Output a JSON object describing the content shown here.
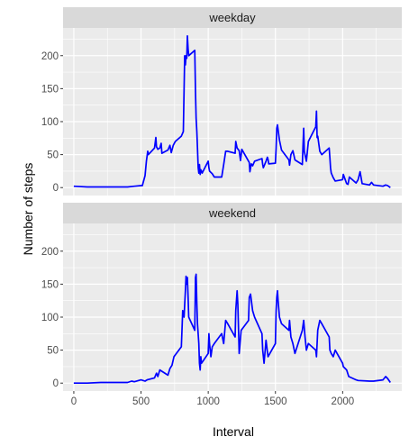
{
  "chart_data": {
    "type": "line",
    "xlabel": "Interval",
    "ylabel": "Number of steps",
    "xlim": [
      -80,
      2440
    ],
    "ylim": [
      -12,
      242
    ],
    "xticks": [
      0,
      500,
      1000,
      1500,
      2000
    ],
    "yticks": [
      0,
      50,
      100,
      150,
      200
    ],
    "grid": true,
    "line_color": "#0000ff",
    "panel_background": "#ebebeb",
    "strip_background": "#d9d9d9",
    "panels": [
      {
        "label": "weekday",
        "points": [
          [
            0,
            2
          ],
          [
            100,
            1
          ],
          [
            200,
            1
          ],
          [
            300,
            1
          ],
          [
            400,
            1
          ],
          [
            450,
            2
          ],
          [
            500,
            3
          ],
          [
            510,
            3
          ],
          [
            530,
            18
          ],
          [
            540,
            40
          ],
          [
            550,
            55
          ],
          [
            555,
            50
          ],
          [
            600,
            60
          ],
          [
            610,
            76
          ],
          [
            615,
            62
          ],
          [
            625,
            58
          ],
          [
            640,
            60
          ],
          [
            650,
            67
          ],
          [
            655,
            52
          ],
          [
            700,
            57
          ],
          [
            715,
            64
          ],
          [
            725,
            53
          ],
          [
            740,
            64
          ],
          [
            755,
            70
          ],
          [
            800,
            78
          ],
          [
            815,
            85
          ],
          [
            825,
            200
          ],
          [
            830,
            186
          ],
          [
            835,
            200
          ],
          [
            840,
            196
          ],
          [
            845,
            230
          ],
          [
            850,
            210
          ],
          [
            855,
            200
          ],
          [
            900,
            208
          ],
          [
            905,
            145
          ],
          [
            910,
            105
          ],
          [
            915,
            85
          ],
          [
            920,
            60
          ],
          [
            925,
            30
          ],
          [
            930,
            22
          ],
          [
            935,
            35
          ],
          [
            940,
            20
          ],
          [
            945,
            27
          ],
          [
            950,
            25
          ],
          [
            955,
            22
          ],
          [
            1000,
            40
          ],
          [
            1005,
            30
          ],
          [
            1010,
            25
          ],
          [
            1030,
            21
          ],
          [
            1045,
            16
          ],
          [
            1100,
            16
          ],
          [
            1115,
            35
          ],
          [
            1130,
            55
          ],
          [
            1145,
            55
          ],
          [
            1200,
            52
          ],
          [
            1205,
            70
          ],
          [
            1215,
            60
          ],
          [
            1230,
            56
          ],
          [
            1240,
            41
          ],
          [
            1250,
            58
          ],
          [
            1300,
            40
          ],
          [
            1305,
            38
          ],
          [
            1310,
            24
          ],
          [
            1320,
            36
          ],
          [
            1330,
            33
          ],
          [
            1345,
            40
          ],
          [
            1400,
            44
          ],
          [
            1405,
            35
          ],
          [
            1410,
            30
          ],
          [
            1430,
            40
          ],
          [
            1440,
            46
          ],
          [
            1445,
            43
          ],
          [
            1450,
            36
          ],
          [
            1500,
            37
          ],
          [
            1505,
            60
          ],
          [
            1510,
            90
          ],
          [
            1515,
            95
          ],
          [
            1530,
            72
          ],
          [
            1545,
            57
          ],
          [
            1600,
            42
          ],
          [
            1605,
            34
          ],
          [
            1615,
            50
          ],
          [
            1630,
            56
          ],
          [
            1645,
            42
          ],
          [
            1700,
            35
          ],
          [
            1705,
            62
          ],
          [
            1710,
            90
          ],
          [
            1715,
            55
          ],
          [
            1730,
            40
          ],
          [
            1745,
            70
          ],
          [
            1800,
            92
          ],
          [
            1805,
            116
          ],
          [
            1810,
            76
          ],
          [
            1815,
            78
          ],
          [
            1830,
            55
          ],
          [
            1845,
            50
          ],
          [
            1900,
            60
          ],
          [
            1905,
            45
          ],
          [
            1910,
            30
          ],
          [
            1915,
            22
          ],
          [
            1930,
            15
          ],
          [
            1945,
            10
          ],
          [
            2000,
            12
          ],
          [
            2005,
            20
          ],
          [
            2030,
            6
          ],
          [
            2040,
            5
          ],
          [
            2050,
            16
          ],
          [
            2100,
            7
          ],
          [
            2115,
            12
          ],
          [
            2130,
            24
          ],
          [
            2145,
            6
          ],
          [
            2200,
            4
          ],
          [
            2215,
            8
          ],
          [
            2230,
            4
          ],
          [
            2300,
            2
          ],
          [
            2320,
            4
          ],
          [
            2335,
            3
          ],
          [
            2355,
            0
          ]
        ]
      },
      {
        "label": "weekend",
        "points": [
          [
            0,
            0
          ],
          [
            100,
            0
          ],
          [
            200,
            1
          ],
          [
            300,
            1
          ],
          [
            400,
            1
          ],
          [
            430,
            3
          ],
          [
            450,
            2
          ],
          [
            500,
            5
          ],
          [
            530,
            3
          ],
          [
            545,
            5
          ],
          [
            600,
            8
          ],
          [
            615,
            15
          ],
          [
            625,
            10
          ],
          [
            640,
            20
          ],
          [
            700,
            12
          ],
          [
            715,
            22
          ],
          [
            730,
            27
          ],
          [
            745,
            40
          ],
          [
            800,
            55
          ],
          [
            805,
            80
          ],
          [
            810,
            110
          ],
          [
            820,
            100
          ],
          [
            830,
            140
          ],
          [
            835,
            162
          ],
          [
            840,
            150
          ],
          [
            845,
            160
          ],
          [
            850,
            130
          ],
          [
            855,
            100
          ],
          [
            900,
            80
          ],
          [
            905,
            160
          ],
          [
            910,
            165
          ],
          [
            915,
            120
          ],
          [
            920,
            90
          ],
          [
            930,
            60
          ],
          [
            935,
            30
          ],
          [
            940,
            20
          ],
          [
            945,
            40
          ],
          [
            950,
            30
          ],
          [
            1000,
            45
          ],
          [
            1005,
            75
          ],
          [
            1010,
            60
          ],
          [
            1020,
            40
          ],
          [
            1030,
            55
          ],
          [
            1045,
            60
          ],
          [
            1100,
            75
          ],
          [
            1115,
            60
          ],
          [
            1130,
            95
          ],
          [
            1145,
            90
          ],
          [
            1200,
            70
          ],
          [
            1205,
            110
          ],
          [
            1215,
            140
          ],
          [
            1220,
            120
          ],
          [
            1225,
            85
          ],
          [
            1230,
            45
          ],
          [
            1245,
            80
          ],
          [
            1300,
            95
          ],
          [
            1305,
            130
          ],
          [
            1315,
            135
          ],
          [
            1330,
            110
          ],
          [
            1345,
            100
          ],
          [
            1400,
            75
          ],
          [
            1405,
            50
          ],
          [
            1415,
            30
          ],
          [
            1430,
            65
          ],
          [
            1445,
            40
          ],
          [
            1500,
            60
          ],
          [
            1505,
            110
          ],
          [
            1510,
            130
          ],
          [
            1515,
            140
          ],
          [
            1520,
            125
          ],
          [
            1530,
            100
          ],
          [
            1545,
            90
          ],
          [
            1600,
            80
          ],
          [
            1605,
            95
          ],
          [
            1615,
            70
          ],
          [
            1630,
            60
          ],
          [
            1645,
            45
          ],
          [
            1700,
            80
          ],
          [
            1710,
            95
          ],
          [
            1720,
            70
          ],
          [
            1730,
            50
          ],
          [
            1745,
            60
          ],
          [
            1800,
            50
          ],
          [
            1805,
            40
          ],
          [
            1815,
            80
          ],
          [
            1830,
            95
          ],
          [
            1845,
            90
          ],
          [
            1900,
            70
          ],
          [
            1905,
            50
          ],
          [
            1915,
            45
          ],
          [
            1930,
            40
          ],
          [
            1945,
            50
          ],
          [
            2000,
            30
          ],
          [
            2005,
            25
          ],
          [
            2030,
            20
          ],
          [
            2045,
            10
          ],
          [
            2100,
            5
          ],
          [
            2115,
            4
          ],
          [
            2200,
            3
          ],
          [
            2230,
            3
          ],
          [
            2300,
            5
          ],
          [
            2320,
            10
          ],
          [
            2335,
            7
          ],
          [
            2355,
            1
          ]
        ]
      }
    ]
  }
}
